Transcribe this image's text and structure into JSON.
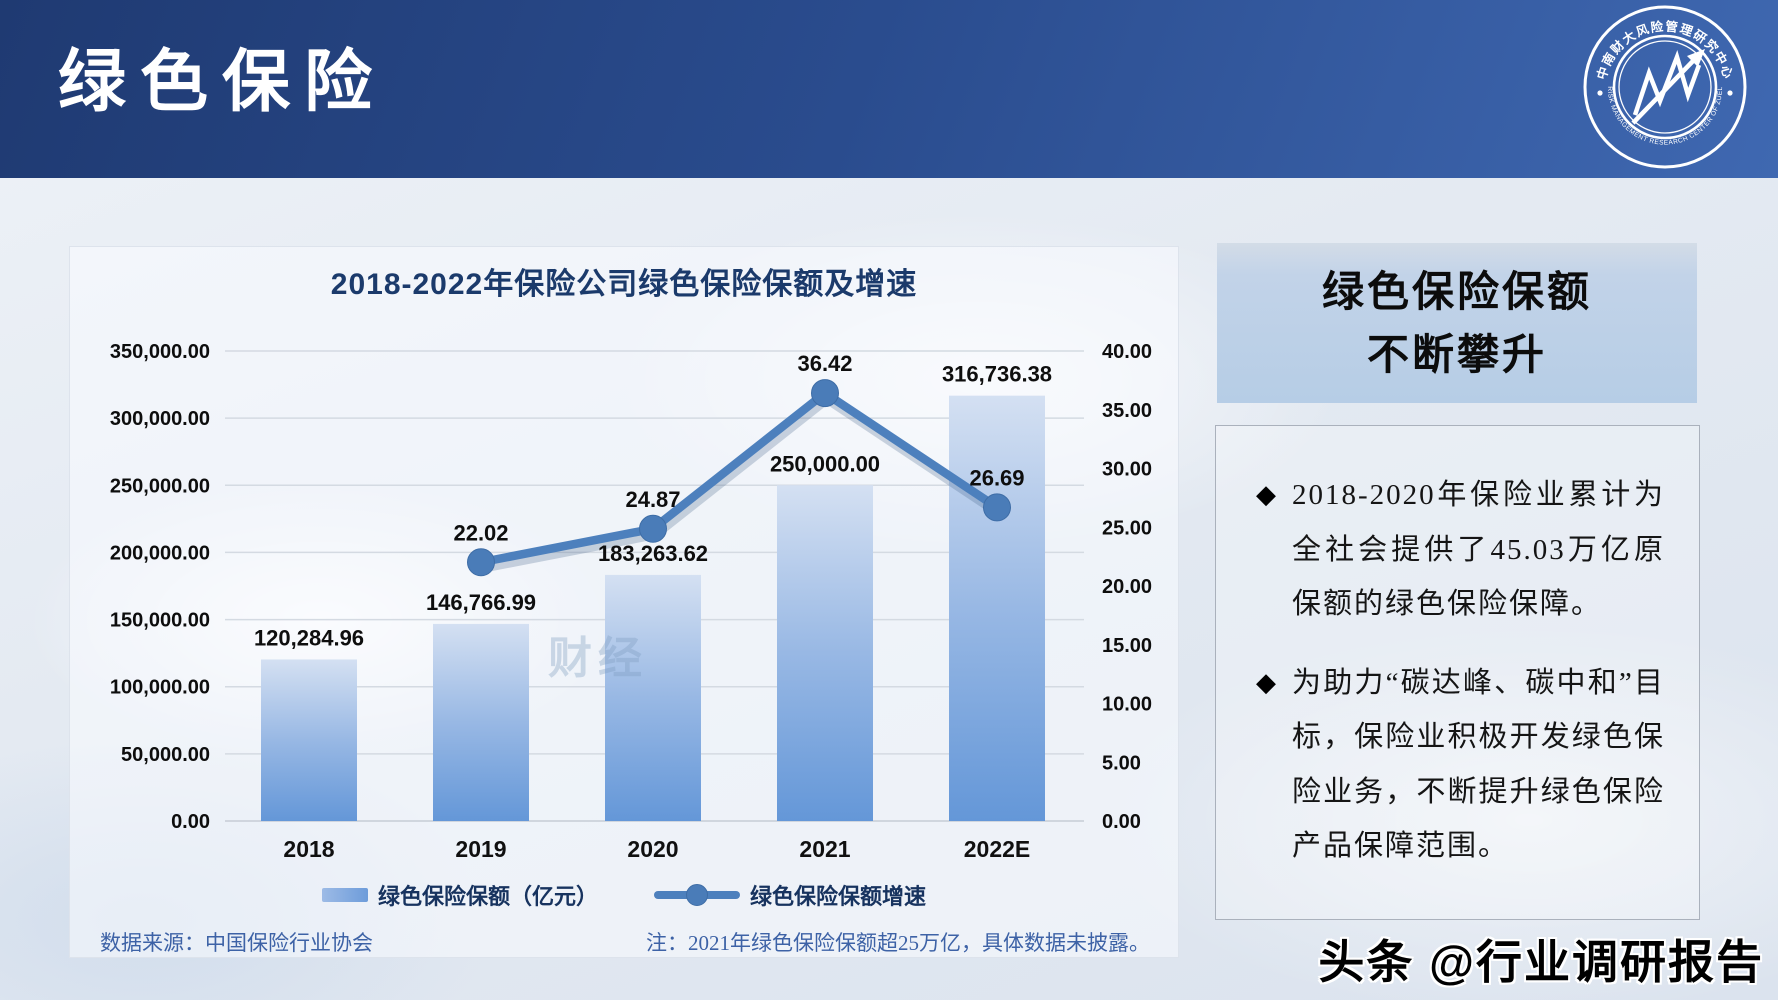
{
  "header": {
    "title": "绿色保险",
    "logo": {
      "text_top": "中南财大风险管理研究中心",
      "text_bottom": "RISK MANAGEMENT RESEARCH CENTER OF ZUEL"
    }
  },
  "chart": {
    "title": "2018-2022年保险公司绿色保险保额及增速",
    "watermark": "财经",
    "legend": [
      {
        "label": "绿色保险保额（亿元）",
        "type": "bar"
      },
      {
        "label": "绿色保险保额增速",
        "type": "line"
      }
    ],
    "notes": {
      "source": "数据来源：中国保险行业协会",
      "remark": "注：2021年绿色保险保额超25万亿，具体数据未披露。"
    },
    "colors": {
      "header_navy": "#27498f",
      "title_navy": "#1b3a6b",
      "bar_top": "#d4e0f2",
      "bar_bottom": "#6497d8",
      "line": "#4d80bd",
      "note_blue": "#3d62a6",
      "panel_blue": "#b6cde6"
    }
  },
  "chart_data": {
    "type": "bar",
    "title": "2018-2022年保险公司绿色保险保额及增速",
    "categories": [
      "2018",
      "2019",
      "2020",
      "2021",
      "2022E"
    ],
    "series": [
      {
        "name": "绿色保险保额（亿元）",
        "type": "bar",
        "axis": "left",
        "values": [
          120284.96,
          146766.99,
          183263.62,
          250000.0,
          316736.38
        ],
        "labels": [
          "120,284.96",
          "146,766.99",
          "183,263.62",
          "250,000.00",
          "316,736.38"
        ]
      },
      {
        "name": "绿色保险保额增速",
        "type": "line",
        "axis": "right",
        "values": [
          null,
          22.02,
          24.87,
          36.42,
          26.69
        ],
        "labels": [
          null,
          "22.02",
          "24.87",
          "36.42",
          "26.69"
        ]
      }
    ],
    "left_axis": {
      "min": 0,
      "max": 350000,
      "step": 50000,
      "labels": [
        "0.00",
        "50,000.00",
        "100,000.00",
        "150,000.00",
        "200,000.00",
        "250,000.00",
        "300,000.00",
        "350,000.00"
      ]
    },
    "right_axis": {
      "min": 0,
      "max": 40,
      "step": 5,
      "labels": [
        "0.00",
        "5.00",
        "10.00",
        "15.00",
        "20.00",
        "25.00",
        "30.00",
        "35.00",
        "40.00"
      ]
    },
    "grid": true,
    "legend_position": "bottom"
  },
  "side_panel": {
    "title_line1": "绿色保险保额",
    "title_line2": "不断攀升",
    "bullet_icon": "◆",
    "bullets": [
      "2018-2020年保险业累计为全社会提供了45.03万亿原保额的绿色保险保障。",
      "为助力“碳达峰、碳中和”目标，保险业积极开发绿色保险业务，不断提升绿色保险产品保障范围。"
    ]
  },
  "footer": {
    "brand_watermark": "头条 @行业调研报告"
  }
}
